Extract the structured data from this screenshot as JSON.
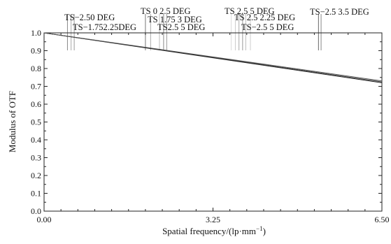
{
  "chart_data": {
    "type": "line",
    "xlabel": "Spatial frequency/(lp·mm",
    "xlabel_sup": "−1",
    "xlabel_tail": ")",
    "ylabel": "Modulus of OTF",
    "xlim": [
      0,
      6.5
    ],
    "ylim": [
      0,
      1.0
    ],
    "x_ticks": [
      0,
      3.25,
      6.5
    ],
    "x_tick_labels": [
      "0.00",
      "3.25",
      "6.50"
    ],
    "y_ticks": [
      0,
      0.1,
      0.2,
      0.3,
      0.4,
      0.5,
      0.6,
      0.7,
      0.8,
      0.9,
      1.0
    ],
    "y_tick_labels": [
      "0.0",
      "0.1",
      "0.2",
      "0.3",
      "0.4",
      "0.5",
      "0.6",
      "0.7",
      "0.8",
      "0.9",
      "1.0"
    ],
    "grid": false,
    "series": [
      {
        "x": [
          0,
          6.5
        ],
        "y": [
          1.0,
          0.725
        ],
        "color": "#444444"
      },
      {
        "x": [
          0,
          6.5
        ],
        "y": [
          1.0,
          0.72
        ],
        "color": "#222222"
      },
      {
        "x": [
          0,
          6.5
        ],
        "y": [
          1.0,
          0.73
        ],
        "color": "#555555"
      }
    ],
    "field_labels": [
      {
        "text": "TS−2.50 DEG",
        "x": 0.45
      },
      {
        "text": "TS−1.752.25DEG",
        "x": 0.55
      },
      {
        "text": "TS 0 2.5 DEG",
        "x": 1.95
      },
      {
        "text": "TS 1.75 3 DEG",
        "x": 2.05
      },
      {
        "text": "TS2.5 5 DEG",
        "x": 2.3
      },
      {
        "text": "TS 2.5 5 DEG",
        "x": 3.75
      },
      {
        "text": "TS 2.5 2.25 DEG",
        "x": 3.85
      },
      {
        "text": "TS−2.5 5 DEG",
        "x": 3.95
      },
      {
        "text": "TS−2.5 3.5 DEG",
        "x": 5.3
      }
    ],
    "marker_lines": [
      {
        "x": 0.45,
        "color": "#888888"
      },
      {
        "x": 0.52,
        "color": "#aaaaaa"
      },
      {
        "x": 0.58,
        "color": "#999999"
      },
      {
        "x": 1.95,
        "color": "#777777"
      },
      {
        "x": 2.05,
        "color": "#aaaaaa"
      },
      {
        "x": 2.22,
        "color": "#bbbbbb"
      },
      {
        "x": 2.3,
        "color": "#888888"
      },
      {
        "x": 2.36,
        "color": "#999999"
      },
      {
        "x": 3.6,
        "color": "#dddddd"
      },
      {
        "x": 3.68,
        "color": "#cccccc"
      },
      {
        "x": 3.75,
        "color": "#aaaaaa"
      },
      {
        "x": 3.82,
        "color": "#999999"
      },
      {
        "x": 3.88,
        "color": "#bbbbbb"
      },
      {
        "x": 3.97,
        "color": "#cccccc"
      },
      {
        "x": 5.28,
        "color": "#666666"
      },
      {
        "x": 5.33,
        "color": "#888888"
      }
    ]
  }
}
